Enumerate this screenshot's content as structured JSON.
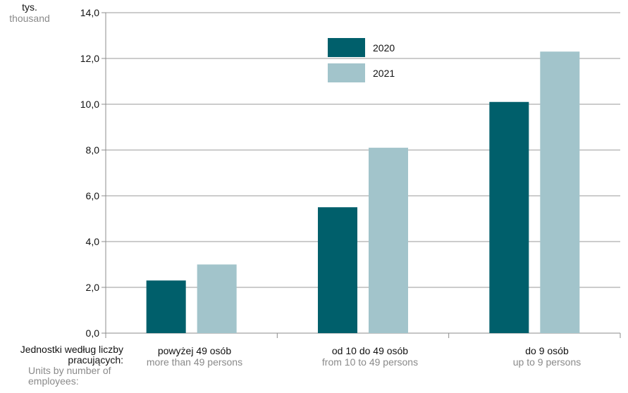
{
  "chart_data": {
    "type": "bar",
    "unit_label": "tys.",
    "unit_label_en": "thousand",
    "x_axis_caption": "Jednostki  według liczby pracujących:",
    "x_axis_caption_en": "Units by number of employees:",
    "categories": [
      "powyżej 49 osób",
      "od 10 do 49 osób",
      "do 9 osób"
    ],
    "categories_en": [
      "more than 49 persons",
      "from 10 to 49 persons",
      "up to 9 persons"
    ],
    "series": [
      {
        "name": "2020",
        "values": [
          2.3,
          5.5,
          10.1
        ],
        "color": "#005f6b"
      },
      {
        "name": "2021",
        "values": [
          3.0,
          8.1,
          12.3
        ],
        "color": "#a2c4cb"
      }
    ],
    "yticks": [
      "0,0",
      "2,0",
      "4,0",
      "6,0",
      "8,0",
      "10,0",
      "12,0",
      "14,0"
    ],
    "ylim": [
      0,
      14
    ],
    "grid": true,
    "legend_position": "top-center"
  }
}
